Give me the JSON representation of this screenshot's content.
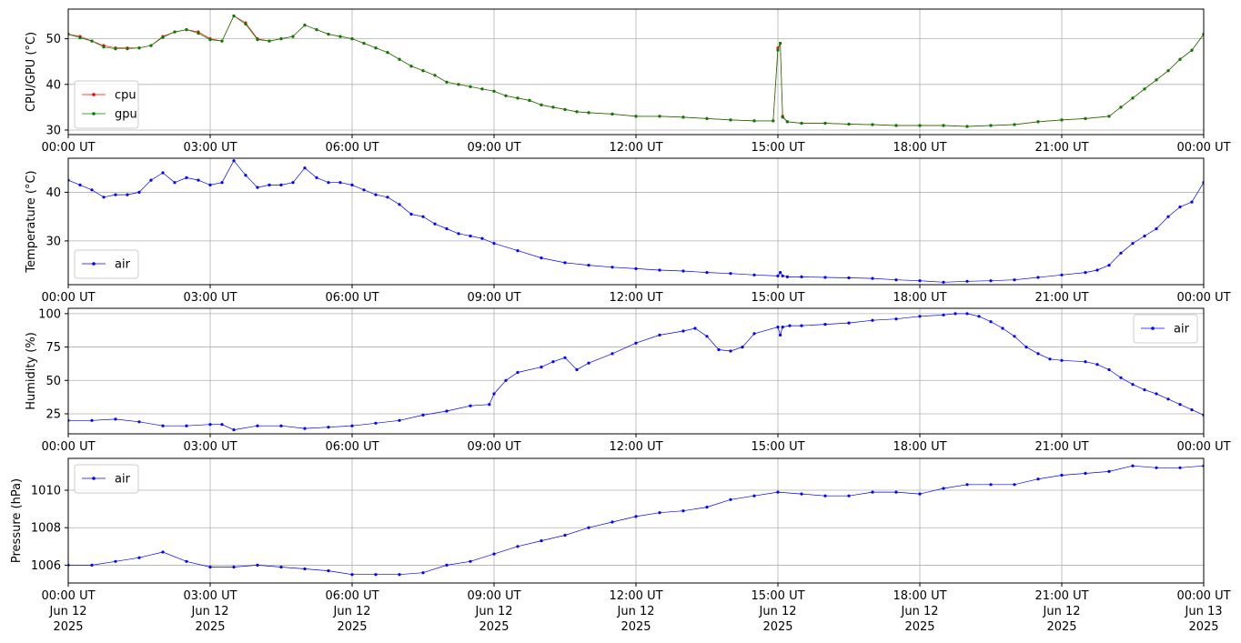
{
  "chart_data": [
    {
      "type": "line",
      "ylabel": "CPU/GPU (°C)",
      "ylim": [
        29,
        56.5
      ],
      "yticks": [
        30,
        40,
        50
      ],
      "xlim": [
        "00:00",
        "24:00"
      ],
      "xticks": [
        "00:00 UT",
        "03:00 UT",
        "06:00 UT",
        "09:00 UT",
        "12:00 UT",
        "15:00 UT",
        "18:00 UT",
        "21:00 UT",
        "00:00 UT"
      ],
      "grid": true,
      "legend": "lower-left",
      "x_hours": [
        0,
        0.25,
        0.5,
        0.75,
        1.0,
        1.25,
        1.5,
        1.75,
        2.0,
        2.25,
        2.5,
        2.75,
        3.0,
        3.25,
        3.5,
        3.75,
        4.0,
        4.25,
        4.5,
        4.75,
        5.0,
        5.25,
        5.5,
        5.75,
        6.0,
        6.25,
        6.5,
        6.75,
        7.0,
        7.25,
        7.5,
        7.75,
        8.0,
        8.25,
        8.5,
        8.75,
        9.0,
        9.25,
        9.5,
        9.75,
        10.0,
        10.25,
        10.5,
        10.75,
        11.0,
        11.5,
        12.0,
        12.5,
        13.0,
        13.5,
        14.0,
        14.5,
        14.9,
        15.0,
        15.05,
        15.1,
        15.2,
        15.5,
        16.0,
        16.5,
        17.0,
        17.5,
        18.0,
        18.5,
        19.0,
        19.5,
        20.0,
        20.5,
        21.0,
        21.5,
        22.0,
        22.25,
        22.5,
        22.75,
        23.0,
        23.25,
        23.5,
        23.75,
        24.0
      ],
      "series": [
        {
          "name": "cpu",
          "color": "#ff0000",
          "values": [
            51,
            50.5,
            49.5,
            48.5,
            48,
            48,
            48,
            48.5,
            50.5,
            51.5,
            52,
            51.5,
            50,
            49.5,
            55,
            53.5,
            50,
            49.5,
            50,
            50.5,
            53,
            52,
            51,
            50.5,
            50,
            49,
            48,
            47,
            45.5,
            44,
            43,
            42,
            40.5,
            40,
            39.5,
            39,
            38.5,
            37.5,
            37,
            36.5,
            35.5,
            35,
            34.5,
            34,
            33.8,
            33.5,
            33,
            33,
            32.8,
            32.5,
            32.2,
            32,
            32,
            48,
            49,
            33,
            31.8,
            31.5,
            31.5,
            31.3,
            31.2,
            31,
            31,
            31,
            30.8,
            31,
            31.2,
            31.8,
            32.2,
            32.5,
            33,
            35,
            37,
            39,
            41,
            43,
            45.5,
            47.5,
            51
          ]
        },
        {
          "name": "gpu",
          "color": "#008000",
          "values": [
            51,
            50.2,
            49.5,
            48.2,
            47.8,
            47.8,
            48,
            48.5,
            50.3,
            51.5,
            52,
            51.2,
            49.8,
            49.5,
            55,
            53.2,
            49.8,
            49.5,
            50,
            50.5,
            53,
            52,
            51,
            50.5,
            50,
            49,
            48,
            47,
            45.5,
            44,
            43,
            42,
            40.5,
            40,
            39.5,
            39,
            38.5,
            37.5,
            37,
            36.5,
            35.5,
            35,
            34.5,
            34,
            33.8,
            33.5,
            33,
            33,
            32.8,
            32.5,
            32.2,
            32,
            32,
            47.5,
            49,
            32.8,
            31.8,
            31.5,
            31.5,
            31.3,
            31.2,
            31,
            31,
            31,
            30.8,
            31,
            31.2,
            31.8,
            32.2,
            32.5,
            33,
            35,
            37,
            39,
            41,
            43,
            45.5,
            47.5,
            51
          ]
        }
      ]
    },
    {
      "type": "line",
      "ylabel": "Temperature (°C)",
      "ylim": [
        21,
        47
      ],
      "yticks": [
        30,
        40
      ],
      "xlim": [
        "00:00",
        "24:00"
      ],
      "xticks": [
        "00:00 UT",
        "03:00 UT",
        "06:00 UT",
        "09:00 UT",
        "12:00 UT",
        "15:00 UT",
        "18:00 UT",
        "21:00 UT",
        "00:00 UT"
      ],
      "grid": true,
      "legend": "lower-left",
      "x_hours": [
        0,
        0.25,
        0.5,
        0.75,
        1.0,
        1.25,
        1.5,
        1.75,
        2.0,
        2.25,
        2.5,
        2.75,
        3.0,
        3.25,
        3.5,
        3.75,
        4.0,
        4.25,
        4.5,
        4.75,
        5.0,
        5.25,
        5.5,
        5.75,
        6.0,
        6.25,
        6.5,
        6.75,
        7.0,
        7.25,
        7.5,
        7.75,
        8.0,
        8.25,
        8.5,
        8.75,
        9.0,
        9.5,
        10.0,
        10.5,
        11.0,
        11.5,
        12.0,
        12.5,
        13.0,
        13.5,
        14.0,
        14.5,
        15.0,
        15.05,
        15.1,
        15.2,
        15.5,
        16.0,
        16.5,
        17.0,
        17.5,
        18.0,
        18.5,
        19.0,
        19.5,
        20.0,
        20.5,
        21.0,
        21.5,
        21.75,
        22.0,
        22.25,
        22.5,
        22.75,
        23.0,
        23.25,
        23.5,
        23.75,
        24.0
      ],
      "series": [
        {
          "name": "air",
          "color": "#0000ff",
          "values": [
            42.5,
            41.5,
            40.5,
            39,
            39.5,
            39.5,
            40,
            42.5,
            44,
            42,
            43,
            42.5,
            41.5,
            42,
            46.5,
            43.5,
            41,
            41.5,
            41.5,
            42,
            45,
            43,
            42,
            42,
            41.5,
            40.5,
            39.5,
            39,
            37.5,
            35.5,
            35,
            33.5,
            32.5,
            31.5,
            31,
            30.5,
            29.5,
            28,
            26.5,
            25.5,
            25,
            24.6,
            24.3,
            24,
            23.8,
            23.5,
            23.3,
            23,
            22.8,
            23.5,
            22.8,
            22.6,
            22.6,
            22.5,
            22.4,
            22.3,
            22,
            21.8,
            21.5,
            21.7,
            21.8,
            22,
            22.5,
            23,
            23.5,
            24,
            25,
            27.5,
            29.5,
            31,
            32.5,
            35,
            37,
            38,
            42
          ]
        }
      ]
    },
    {
      "type": "line",
      "ylabel": "Humidity (%)",
      "ylim": [
        10,
        104
      ],
      "yticks": [
        25,
        50,
        75,
        100
      ],
      "xlim": [
        "00:00",
        "24:00"
      ],
      "xticks": [
        "00:00 UT",
        "03:00 UT",
        "06:00 UT",
        "09:00 UT",
        "12:00 UT",
        "15:00 UT",
        "18:00 UT",
        "21:00 UT",
        "00:00 UT"
      ],
      "grid": true,
      "legend": "upper-right",
      "x_hours": [
        0,
        0.5,
        1.0,
        1.5,
        2.0,
        2.5,
        3.0,
        3.25,
        3.5,
        4.0,
        4.5,
        5.0,
        5.5,
        6.0,
        6.5,
        7.0,
        7.5,
        8.0,
        8.5,
        8.9,
        9.0,
        9.25,
        9.5,
        10.0,
        10.25,
        10.5,
        10.75,
        11.0,
        11.5,
        12.0,
        12.5,
        13.0,
        13.25,
        13.5,
        13.75,
        14.0,
        14.25,
        14.5,
        15.0,
        15.05,
        15.1,
        15.25,
        15.5,
        16.0,
        16.5,
        17.0,
        17.5,
        18.0,
        18.5,
        18.75,
        19.0,
        19.25,
        19.5,
        19.75,
        20.0,
        20.25,
        20.5,
        20.75,
        21.0,
        21.5,
        21.75,
        22.0,
        22.25,
        22.5,
        22.75,
        23.0,
        23.25,
        23.5,
        23.75,
        24.0
      ],
      "series": [
        {
          "name": "air",
          "color": "#0000ff",
          "values": [
            20,
            20,
            21,
            19,
            16,
            16,
            17,
            17,
            13,
            16,
            16,
            14,
            15,
            16,
            18,
            20,
            24,
            27,
            31,
            32,
            40,
            50,
            56,
            60,
            64,
            67,
            58,
            63,
            70,
            78,
            84,
            87,
            89,
            83,
            73,
            72,
            75,
            85,
            90,
            84,
            90,
            91,
            91,
            92,
            93,
            95,
            96,
            98,
            99,
            100,
            100,
            98,
            94,
            89,
            83,
            75,
            70,
            66,
            65,
            64,
            62,
            58,
            52,
            47,
            43,
            40,
            36,
            32,
            28,
            24
          ]
        }
      ]
    },
    {
      "type": "line",
      "ylabel": "Pressure (hPa)",
      "ylim": [
        1005.05,
        1011.7
      ],
      "yticks": [
        1006,
        1008,
        1010
      ],
      "xlim": [
        "2025-06-12 00:00",
        "2025-06-13 00:00"
      ],
      "xticks": [
        "00:00 UT",
        "03:00 UT",
        "06:00 UT",
        "09:00 UT",
        "12:00 UT",
        "15:00 UT",
        "18:00 UT",
        "21:00 UT",
        "00:00 UT"
      ],
      "xticks_date": [
        "Jun 12",
        "Jun 12",
        "Jun 12",
        "Jun 12",
        "Jun 12",
        "Jun 12",
        "Jun 12",
        "Jun 12",
        "Jun 13"
      ],
      "xticks_year": [
        "2025",
        "2025",
        "2025",
        "2025",
        "2025",
        "2025",
        "2025",
        "2025",
        "2025"
      ],
      "grid": true,
      "legend": "upper-left",
      "x_hours": [
        0,
        0.5,
        1.0,
        1.5,
        2.0,
        2.5,
        3.0,
        3.5,
        4.0,
        4.5,
        5.0,
        5.5,
        6.0,
        6.5,
        7.0,
        7.5,
        8.0,
        8.5,
        9.0,
        9.5,
        10.0,
        10.5,
        11.0,
        11.5,
        12.0,
        12.5,
        13.0,
        13.5,
        14.0,
        14.5,
        15.0,
        15.5,
        16.0,
        16.5,
        17.0,
        17.5,
        18.0,
        18.5,
        19.0,
        19.5,
        20.0,
        20.5,
        21.0,
        21.5,
        22.0,
        22.5,
        23.0,
        23.5,
        24.0
      ],
      "series": [
        {
          "name": "air",
          "color": "#0000ff",
          "values": [
            1006.0,
            1006.0,
            1006.2,
            1006.4,
            1006.7,
            1006.2,
            1005.9,
            1005.9,
            1006.0,
            1005.9,
            1005.8,
            1005.7,
            1005.5,
            1005.5,
            1005.5,
            1005.6,
            1006.0,
            1006.2,
            1006.6,
            1007.0,
            1007.3,
            1007.6,
            1008.0,
            1008.3,
            1008.6,
            1008.8,
            1008.9,
            1009.1,
            1009.5,
            1009.7,
            1009.9,
            1009.8,
            1009.7,
            1009.7,
            1009.9,
            1009.9,
            1009.8,
            1010.1,
            1010.3,
            1010.3,
            1010.3,
            1010.6,
            1010.8,
            1010.9,
            1011.0,
            1011.3,
            1011.2,
            1011.2,
            1011.3
          ]
        }
      ]
    }
  ]
}
